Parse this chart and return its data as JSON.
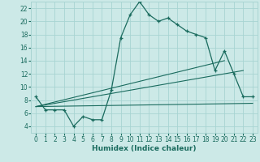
{
  "xlabel": "Humidex (Indice chaleur)",
  "xlim": [
    -0.5,
    23.5
  ],
  "ylim": [
    3.0,
    23.0
  ],
  "yticks": [
    4,
    6,
    8,
    10,
    12,
    14,
    16,
    18,
    20,
    22
  ],
  "xticks": [
    0,
    1,
    2,
    3,
    4,
    5,
    6,
    7,
    8,
    9,
    10,
    11,
    12,
    13,
    14,
    15,
    16,
    17,
    18,
    19,
    20,
    21,
    22,
    23
  ],
  "bg_color": "#cce9e7",
  "grid_color": "#a8d4d2",
  "line_color": "#1a6b5e",
  "series1_x": [
    0,
    1,
    2,
    3,
    4,
    5,
    6,
    7,
    8,
    9,
    10,
    11,
    12,
    13,
    14,
    15,
    16,
    17,
    18,
    19,
    20,
    21,
    22,
    23
  ],
  "series1_y": [
    8.5,
    6.5,
    6.5,
    6.5,
    4.0,
    5.5,
    5.0,
    5.0,
    9.5,
    17.5,
    21.0,
    23.0,
    21.0,
    20.0,
    20.5,
    19.5,
    18.5,
    18.0,
    17.5,
    12.5,
    15.5,
    12.0,
    8.5,
    8.5
  ],
  "series2_x": [
    0,
    20
  ],
  "series2_y": [
    7.0,
    14.0
  ],
  "series3_x": [
    0,
    22
  ],
  "series3_y": [
    7.0,
    12.5
  ],
  "series4_x": [
    0,
    23
  ],
  "series4_y": [
    7.0,
    7.5
  ],
  "tick_fontsize": 5.5,
  "xlabel_fontsize": 6.5
}
